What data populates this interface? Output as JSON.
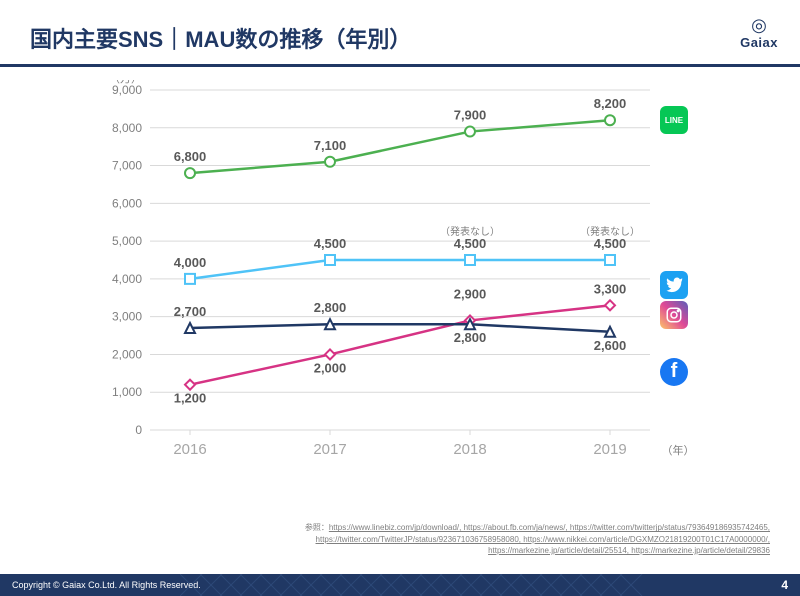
{
  "header": {
    "title": "国内主要SNS｜MAU数の推移（年別）",
    "logo_text": "Gaiax"
  },
  "chart": {
    "type": "line",
    "x_categories": [
      "2016",
      "2017",
      "2018",
      "2019"
    ],
    "x_unit": "（年）",
    "y_unit": "（万）",
    "ylim": [
      0,
      9000
    ],
    "ytick_step": 1000,
    "background_color": "#ffffff",
    "grid_color": "#d9d9d9",
    "axis_text_color": "#7f7f7f",
    "x_label_color": "#a6a6a6",
    "data_label_color": "#595959",
    "series": [
      {
        "name": "LINE",
        "icon": "line",
        "color": "#4cb050",
        "icon_bg": "#06c755",
        "marker": "circle",
        "values": [
          6800,
          7100,
          7900,
          8200
        ],
        "labels": [
          "6,800",
          "7,100",
          "7,900",
          "8,200"
        ],
        "notes": [
          "",
          "",
          "",
          ""
        ]
      },
      {
        "name": "Twitter",
        "icon": "twitter",
        "color": "#4fc3f7",
        "icon_bg": "#1da1f2",
        "marker": "square",
        "values": [
          4000,
          4500,
          4500,
          4500
        ],
        "labels": [
          "4,000",
          "4,500",
          "4,500",
          "4,500"
        ],
        "notes": [
          "",
          "",
          "（発表なし）",
          "（発表なし）"
        ]
      },
      {
        "name": "Instagram",
        "icon": "instagram",
        "color": "#d63384",
        "icon_bg": "linear-gradient(45deg,#fdc468,#df4996,#5a5eb9)",
        "marker": "diamond",
        "values": [
          1200,
          2000,
          2900,
          3300
        ],
        "labels": [
          "1,200",
          "2,000",
          "2,900",
          "3,300"
        ],
        "notes": [
          "",
          "",
          "",
          ""
        ]
      },
      {
        "name": "Facebook",
        "icon": "facebook",
        "color": "#203864",
        "icon_bg": "#1877f2",
        "marker": "triangle",
        "values": [
          2700,
          2800,
          2800,
          2600
        ],
        "labels": [
          "2,700",
          "2,800",
          "2,800",
          "2,600"
        ],
        "notes": [
          "",
          "",
          "",
          ""
        ]
      }
    ]
  },
  "refs": {
    "prefix": "参照：",
    "line1": "https://www.linebiz.com/jp/download/, https://about.fb.com/ja/news/, https://twitter.com/twitterjp/status/793649186935742465, ",
    "line2": "https://twitter.com/TwitterJP/status/923671036758958080, https://www.nikkei.com/article/DGXMZO21819200T01C17A0000000/, ",
    "line3": "https://markezine.jp/article/detail/25514, https://markezine.jp/article/detail/29836"
  },
  "footer": {
    "copyright": "Copyright © Gaiax Co.Ltd. All Rights Reserved.",
    "page": "4"
  }
}
